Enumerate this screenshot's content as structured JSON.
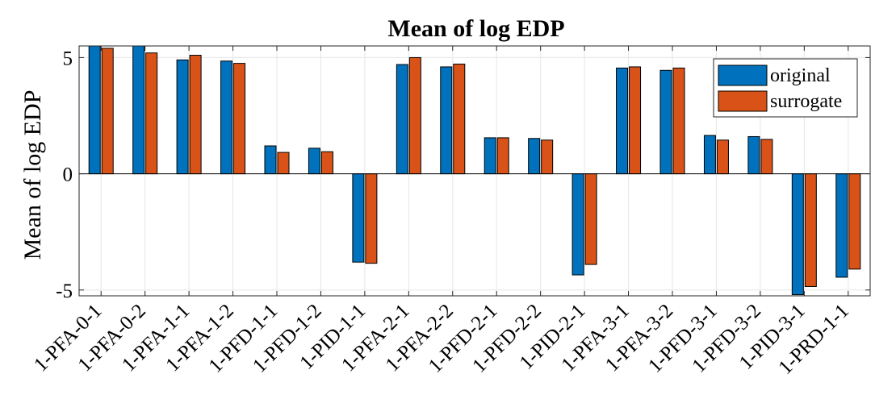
{
  "chart_data": {
    "type": "bar",
    "title": "Mean of log EDP",
    "xlabel": "",
    "ylabel": "Mean of log EDP",
    "categories": [
      "1-PFA-0-1",
      "1-PFA-0-2",
      "1-PFA-1-1",
      "1-PFA-1-2",
      "1-PFD-1-1",
      "1-PFD-1-2",
      "1-PID-1-1",
      "1-PFA-2-1",
      "1-PFA-2-2",
      "1-PFD-2-1",
      "1-PFD-2-2",
      "1-PID-2-1",
      "1-PFA-3-1",
      "1-PFA-3-2",
      "1-PFD-3-1",
      "1-PFD-3-2",
      "1-PID-3-1",
      "1-PRD-1-1"
    ],
    "series": [
      {
        "name": "original",
        "color": "#0072BD",
        "values": [
          5.6,
          5.6,
          4.9,
          4.85,
          1.2,
          1.1,
          -3.8,
          4.7,
          4.6,
          1.55,
          1.52,
          -4.35,
          4.55,
          4.45,
          1.65,
          1.6,
          -5.2,
          -4.45
        ]
      },
      {
        "name": "surrogate",
        "color": "#D95319",
        "values": [
          5.4,
          5.2,
          5.1,
          4.75,
          0.92,
          0.95,
          -3.85,
          5.0,
          4.72,
          1.55,
          1.45,
          -3.9,
          4.6,
          4.55,
          1.45,
          1.48,
          -4.85,
          -4.1
        ]
      }
    ],
    "ylim": [
      -5.25,
      5.5
    ],
    "yticks": [
      -5,
      0,
      5
    ],
    "ytick_labels": [
      "-5",
      "0",
      "5"
    ],
    "grid": true,
    "legend_position": "top-right"
  }
}
